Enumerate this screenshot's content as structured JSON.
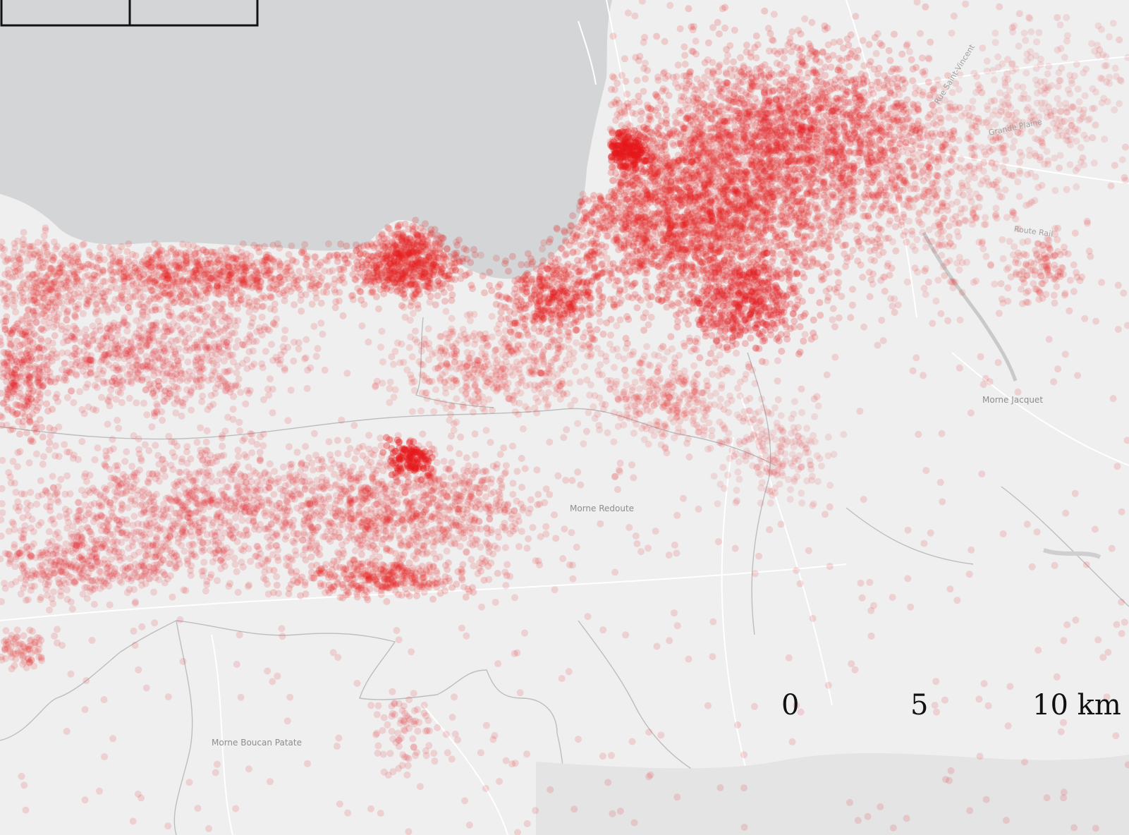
{
  "map": {
    "colors": {
      "land": "#efefef",
      "sea": "#d3d5d6",
      "boundary": "#b9b9b9",
      "road": "#ffffff",
      "point": "#e5181a"
    },
    "labels": {
      "morne_jacquet": "Morne Jacquet",
      "morne_redoute": "Morne Redoute",
      "morne_boucan_patate": "Morne Boucan Patate",
      "grande_plaine": "Grande Plaine",
      "route_rail": "Route Rail",
      "rue_saint_vincent": "Rue Saint-Vincent"
    },
    "scale_bar": {
      "tick_0": "0",
      "tick_5": "5",
      "tick_10": "10 km"
    }
  }
}
